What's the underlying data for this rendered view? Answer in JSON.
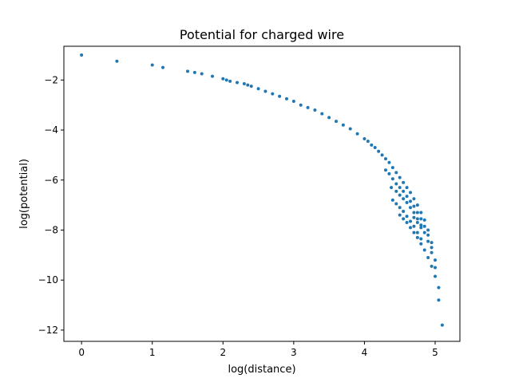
{
  "chart_data": {
    "type": "scatter",
    "title": "Potential for charged wire",
    "xlabel": "log(distance)",
    "ylabel": "log(potential)",
    "xlim": [
      -0.25,
      5.35
    ],
    "ylim": [
      -12.45,
      -0.65
    ],
    "xticks": [
      0,
      1,
      2,
      3,
      4,
      5
    ],
    "yticks": [
      -2,
      -4,
      -6,
      -8,
      -10,
      -12
    ],
    "color": "#1f77b4",
    "grid": false,
    "x": [
      0,
      0.5,
      1.0,
      1.15,
      1.5,
      1.6,
      1.7,
      1.85,
      2.0,
      2.05,
      2.1,
      2.2,
      2.3,
      2.35,
      2.4,
      2.5,
      2.6,
      2.7,
      2.8,
      2.9,
      3.0,
      3.1,
      3.2,
      3.3,
      3.4,
      3.5,
      3.6,
      3.7,
      3.8,
      3.9,
      4.0,
      4.05,
      4.1,
      4.15,
      4.2,
      4.25,
      4.3,
      4.35,
      4.4,
      4.45,
      4.5,
      4.55,
      4.6,
      4.65,
      4.7,
      4.75,
      4.8,
      4.85,
      4.9,
      4.95,
      5.0,
      5.05,
      4.3,
      4.35,
      4.4,
      4.45,
      4.5,
      4.55,
      4.6,
      4.65,
      4.7,
      4.75,
      4.8,
      4.85,
      4.9,
      4.95,
      5.0,
      4.38,
      4.45,
      4.5,
      4.55,
      4.6,
      4.65,
      4.7,
      4.75,
      4.8,
      4.85,
      4.9,
      4.95,
      4.4,
      4.45,
      4.5,
      4.55,
      4.6,
      4.65,
      4.7,
      4.75,
      4.8,
      4.5,
      4.55,
      4.6,
      4.65,
      4.7,
      4.75,
      4.8,
      4.85,
      4.9,
      4.95,
      5.0,
      5.05,
      5.1,
      4.7,
      4.75,
      4.8
    ],
    "y": [
      -1.0,
      -1.25,
      -1.4,
      -1.5,
      -1.65,
      -1.7,
      -1.75,
      -1.85,
      -1.95,
      -2.0,
      -2.05,
      -2.1,
      -2.15,
      -2.2,
      -2.25,
      -2.35,
      -2.45,
      -2.55,
      -2.65,
      -2.75,
      -2.85,
      -3.0,
      -3.1,
      -3.2,
      -3.35,
      -3.5,
      -3.65,
      -3.8,
      -3.95,
      -4.15,
      -4.35,
      -4.45,
      -4.6,
      -4.7,
      -4.85,
      -5.0,
      -5.15,
      -5.3,
      -5.5,
      -5.7,
      -5.9,
      -6.1,
      -6.3,
      -6.5,
      -6.75,
      -7.0,
      -7.3,
      -7.6,
      -8.0,
      -8.5,
      -9.2,
      -10.8,
      -5.6,
      -5.75,
      -5.95,
      -6.15,
      -6.3,
      -6.45,
      -6.65,
      -6.85,
      -7.05,
      -7.3,
      -7.55,
      -7.85,
      -8.2,
      -8.7,
      -9.5,
      -6.3,
      -6.45,
      -6.6,
      -6.75,
      -6.9,
      -7.1,
      -7.3,
      -7.55,
      -7.8,
      -8.1,
      -8.45,
      -8.9,
      -6.8,
      -6.95,
      -7.1,
      -7.25,
      -7.45,
      -7.65,
      -7.85,
      -8.1,
      -8.35,
      -7.4,
      -7.55,
      -7.7,
      -7.9,
      -8.1,
      -8.3,
      -8.55,
      -8.8,
      -9.1,
      -9.45,
      -9.85,
      -10.3,
      -11.8,
      -7.5,
      -7.7,
      -7.9
    ]
  }
}
